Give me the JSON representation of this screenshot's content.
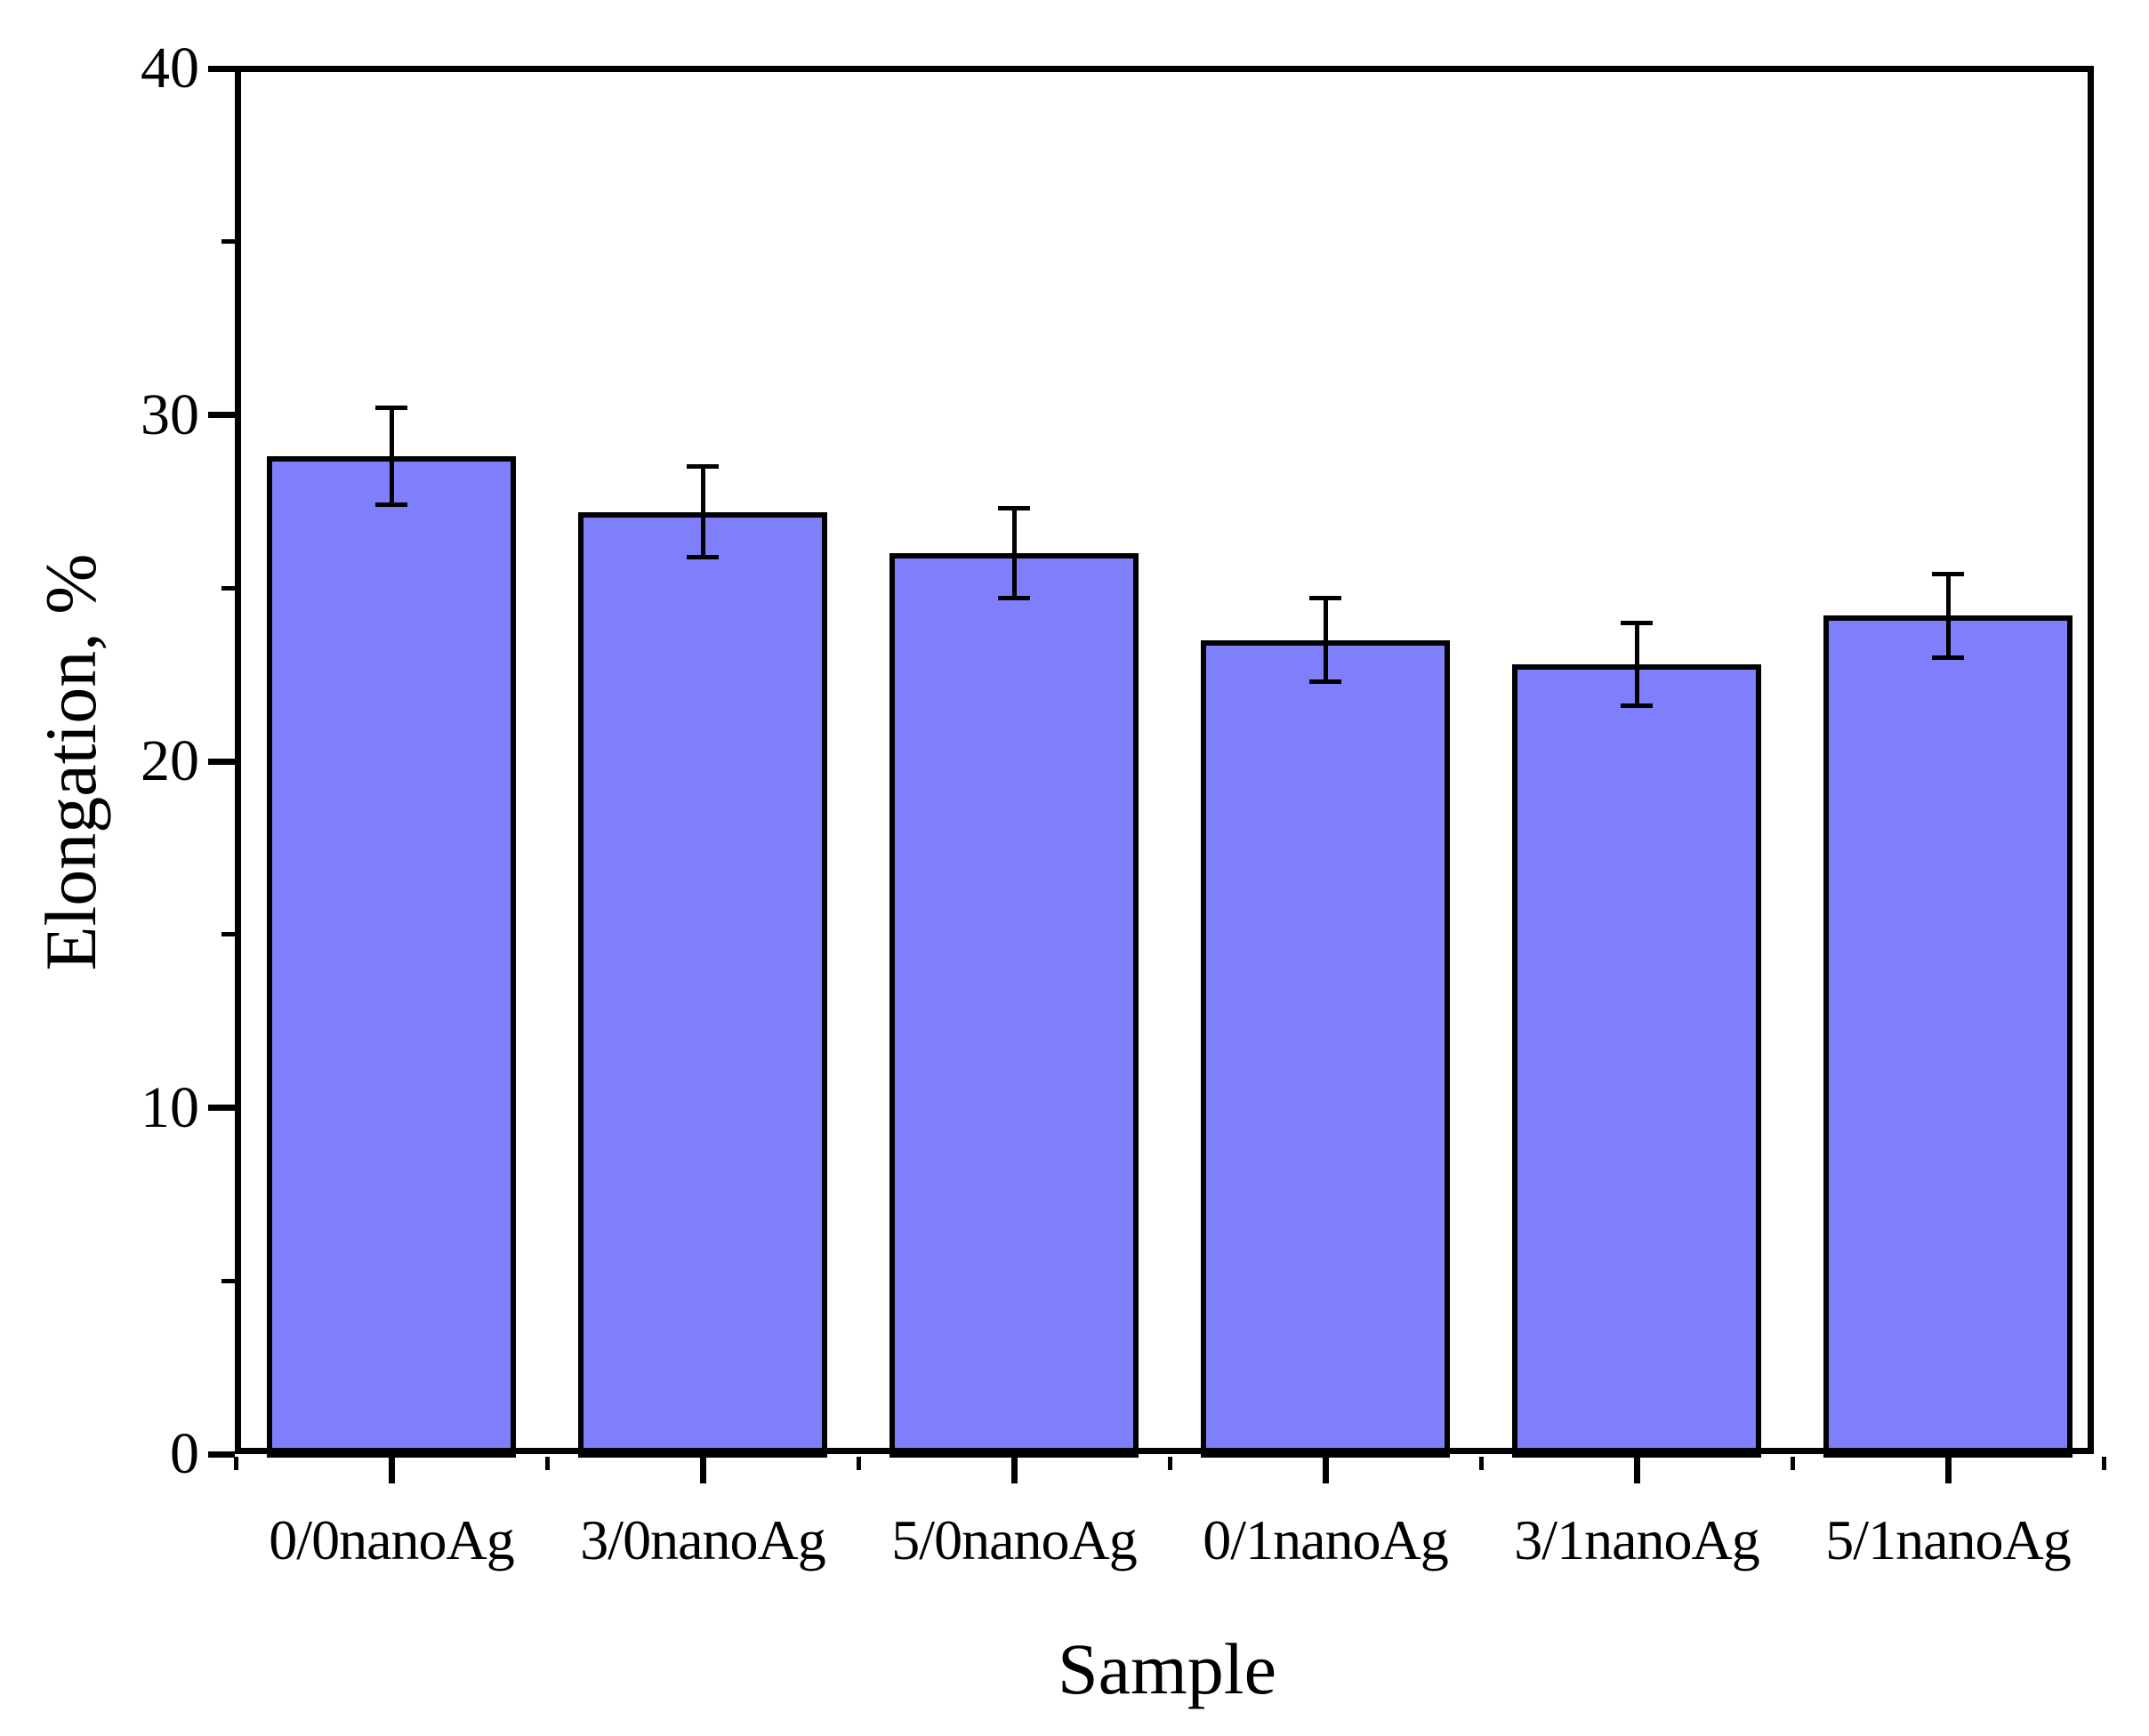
{
  "figure": {
    "background_color": "#ffffff",
    "frame_color": "#000000"
  },
  "chart_data": {
    "type": "bar",
    "title": "",
    "xlabel": "Sample",
    "ylabel": "Elongation, %",
    "categories": [
      "0/0nanoAg",
      "3/0nanoAg",
      "5/0nanoAg",
      "0/1nanoAg",
      "3/1nanoAg",
      "5/1nanoAg"
    ],
    "series": [
      {
        "name": "Elongation",
        "values": [
          28.8,
          27.2,
          26.0,
          23.5,
          22.8,
          24.2
        ],
        "error_bars": [
          1.4,
          1.3,
          1.3,
          1.2,
          1.2,
          1.2
        ]
      }
    ],
    "ylim": [
      0,
      40
    ],
    "ytick_values": [
      0,
      10,
      20,
      30,
      40
    ],
    "ytick_labels": [
      "0",
      "10",
      "20",
      "30",
      "40"
    ],
    "yminor_tick_values": [
      5,
      15,
      25,
      35
    ],
    "grid": "off",
    "legend": "none",
    "bar_fill_color": "#7F7FFC",
    "bar_outline_color": "#000000",
    "error_bar_color": "#000000"
  }
}
